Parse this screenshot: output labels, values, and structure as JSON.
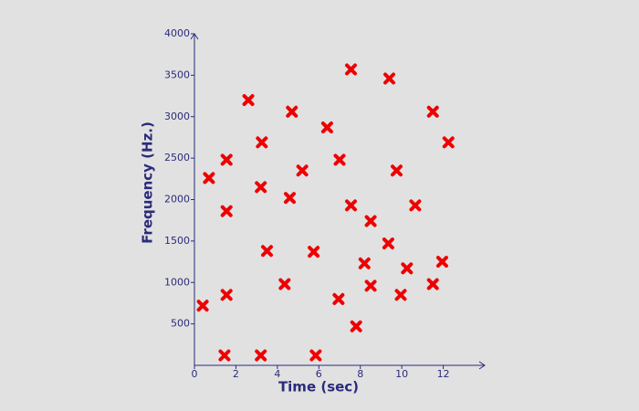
{
  "chart_data": {
    "type": "scatter",
    "x_label": "Time (sec)",
    "y_label": "Frequency (Hz.)",
    "x": [
      0.4,
      0.7,
      1.55,
      1.55,
      1.55,
      1.45,
      2.6,
      3.25,
      3.2,
      3.5,
      3.2,
      4.35,
      4.7,
      4.6,
      5.2,
      5.75,
      5.85,
      6.4,
      7.0,
      6.95,
      7.55,
      7.55,
      7.8,
      8.2,
      8.5,
      8.5,
      9.4,
      9.35,
      9.75,
      9.95,
      10.25,
      10.65,
      11.5,
      11.5,
      12.25,
      11.95
    ],
    "values": [
      720,
      2260,
      2480,
      1860,
      850,
      120,
      3200,
      2690,
      2150,
      1380,
      120,
      980,
      3060,
      2020,
      2350,
      1370,
      120,
      2870,
      2480,
      800,
      3570,
      1930,
      470,
      1230,
      1740,
      960,
      3460,
      1470,
      2350,
      850,
      1170,
      1930,
      3060,
      980,
      2690,
      1250
    ],
    "color": "#ee0000",
    "xlim": [
      0,
      14
    ],
    "ylim": [
      0,
      4000
    ],
    "xticks": [
      0,
      2,
      4,
      6,
      8,
      10,
      12
    ],
    "yticks": [
      500,
      1000,
      1500,
      2000,
      2500,
      3000,
      3500,
      4000
    ],
    "grid": false
  }
}
